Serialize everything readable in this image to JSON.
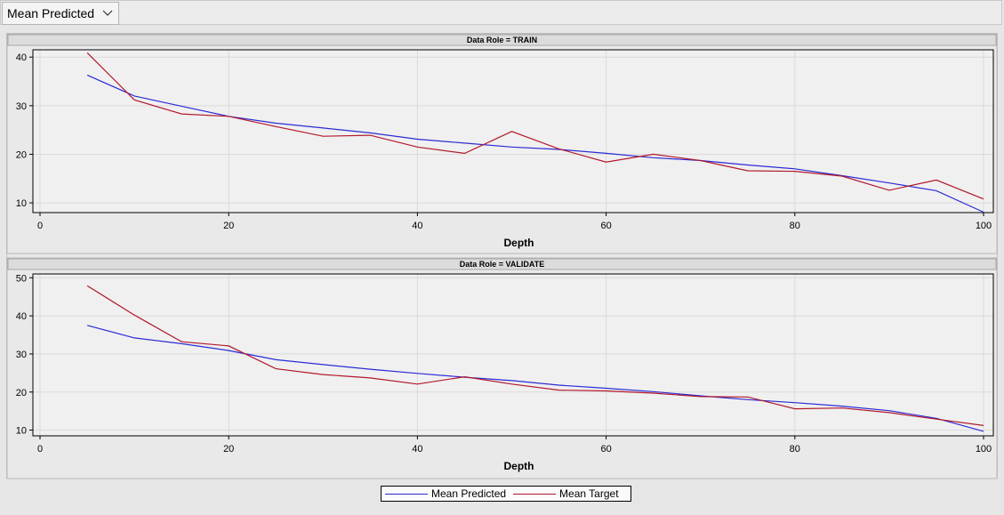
{
  "toolbar": {
    "dropdown_value": "Mean Predicted"
  },
  "colors": {
    "predicted": "#2b2bd6",
    "target": "#b2182b"
  },
  "legend": {
    "predicted_label": "Mean Predicted",
    "target_label": "Mean Target"
  },
  "chart_data": [
    {
      "type": "line",
      "title": "Data Role = TRAIN",
      "xlabel": "Depth",
      "ylabel": "",
      "xlim": [
        0,
        100
      ],
      "ylim": [
        8,
        41.5
      ],
      "xticks": [
        0,
        20,
        40,
        60,
        80,
        100
      ],
      "yticks": [
        10,
        20,
        30,
        40
      ],
      "grid": true,
      "x": [
        5,
        10,
        15,
        20,
        25,
        30,
        35,
        40,
        45,
        50,
        55,
        60,
        65,
        70,
        75,
        80,
        85,
        90,
        95,
        100
      ],
      "series": [
        {
          "name": "Mean Predicted",
          "values": [
            36.3,
            32.0,
            29.9,
            27.8,
            26.4,
            25.4,
            24.4,
            23.1,
            22.3,
            21.5,
            21.0,
            20.2,
            19.3,
            18.7,
            17.8,
            17.0,
            15.6,
            14.1,
            12.5,
            8.1
          ]
        },
        {
          "name": "Mean Target",
          "values": [
            40.9,
            31.2,
            28.3,
            27.8,
            25.7,
            23.7,
            23.9,
            21.5,
            20.2,
            24.7,
            21.1,
            18.4,
            20.0,
            18.7,
            16.6,
            16.5,
            15.5,
            12.6,
            14.7,
            10.8
          ]
        }
      ]
    },
    {
      "type": "line",
      "title": "Data Role = VALIDATE",
      "xlabel": "Depth",
      "ylabel": "",
      "xlim": [
        0,
        100
      ],
      "ylim": [
        8.5,
        51
      ],
      "xticks": [
        0,
        20,
        40,
        60,
        80,
        100
      ],
      "yticks": [
        10,
        20,
        30,
        40,
        50
      ],
      "grid": true,
      "x": [
        5,
        10,
        15,
        20,
        25,
        30,
        35,
        40,
        45,
        50,
        55,
        60,
        65,
        70,
        75,
        80,
        85,
        90,
        95,
        100
      ],
      "series": [
        {
          "name": "Mean Predicted",
          "values": [
            37.5,
            34.2,
            32.7,
            30.9,
            28.5,
            27.2,
            26.0,
            24.9,
            23.9,
            23.0,
            21.8,
            21.0,
            20.1,
            19.0,
            18.0,
            17.2,
            16.3,
            15.1,
            13.1,
            9.7
          ]
        },
        {
          "name": "Mean Target",
          "values": [
            47.9,
            40.2,
            33.2,
            32.1,
            26.1,
            24.6,
            23.7,
            22.1,
            24.0,
            22.1,
            20.5,
            20.3,
            19.7,
            18.8,
            18.7,
            15.6,
            15.8,
            14.6,
            12.9,
            11.2
          ]
        }
      ]
    }
  ]
}
